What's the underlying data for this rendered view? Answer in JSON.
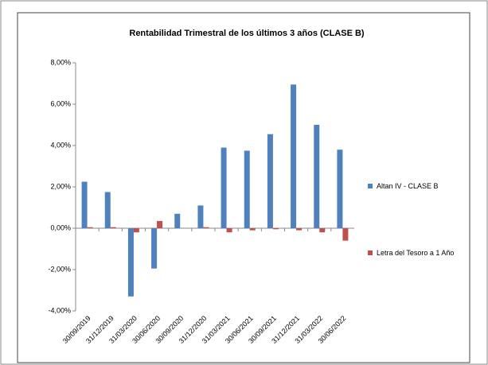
{
  "chart_data": {
    "type": "bar",
    "title": "Rentabilidad Trimestral de los últimos 3 años (CLASE B)",
    "categories": [
      "30/09/2019",
      "31/12/2019",
      "31/03/2020",
      "30/06/2020",
      "30/09/2020",
      "31/12/2020",
      "31/03/2021",
      "30/06/2021",
      "30/09/2021",
      "31/12/2021",
      "31/03/2022",
      "30/06/2022"
    ],
    "series": [
      {
        "name": "Altan IV - CLASE B",
        "color": "#4f81bd",
        "values": [
          2.25,
          1.75,
          -3.3,
          -1.95,
          0.7,
          1.1,
          3.9,
          3.75,
          4.55,
          6.95,
          5.0,
          3.8
        ]
      },
      {
        "name": "Letra del Tesoro a 1 Año",
        "color": "#c0504d",
        "values": [
          0.05,
          0.05,
          -0.2,
          0.35,
          0.0,
          0.05,
          -0.2,
          -0.1,
          -0.05,
          -0.1,
          -0.2,
          -0.6
        ]
      }
    ],
    "ylim": [
      -4,
      8
    ],
    "yticks": [
      {
        "value": -4,
        "label": "-4,00%"
      },
      {
        "value": -2,
        "label": "-2,00%"
      },
      {
        "value": 0,
        "label": "0,00%"
      },
      {
        "value": 2,
        "label": "2,00%"
      },
      {
        "value": 4,
        "label": "4,00%"
      },
      {
        "value": 6,
        "label": "6,00%"
      },
      {
        "value": 8,
        "label": "8,00%"
      }
    ],
    "grid": false,
    "legend": "right"
  }
}
